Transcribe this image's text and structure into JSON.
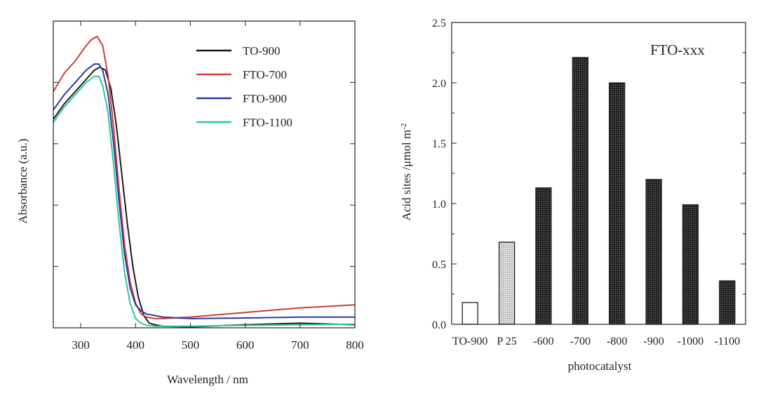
{
  "chart_data": [
    {
      "type": "line",
      "title": "",
      "xlabel": "Wavelength / nm",
      "ylabel": "Absorbance (a.u.)",
      "xlim": [
        250,
        800
      ],
      "ylim": [
        0,
        1.0
      ],
      "x_ticks": [
        300,
        400,
        500,
        600,
        700,
        800
      ],
      "y_ticks_labeled": false,
      "legend_position": "top-right",
      "series": [
        {
          "name": "TO-900",
          "color": "#1a1a1a",
          "x": [
            250,
            270,
            290,
            310,
            325,
            335,
            345,
            355,
            365,
            375,
            385,
            395,
            405,
            415,
            425,
            435,
            450,
            500,
            600,
            700,
            800
          ],
          "y": [
            0.68,
            0.73,
            0.77,
            0.81,
            0.84,
            0.85,
            0.84,
            0.78,
            0.66,
            0.5,
            0.34,
            0.2,
            0.1,
            0.04,
            0.015,
            0.01,
            0.005,
            0.003,
            0.01,
            0.015,
            0.01
          ]
        },
        {
          "name": "FTO-700",
          "color": "#d23a3a",
          "x": [
            250,
            270,
            290,
            310,
            320,
            330,
            340,
            350,
            360,
            370,
            380,
            390,
            400,
            410,
            420,
            435,
            450,
            500,
            600,
            700,
            800
          ],
          "y": [
            0.77,
            0.83,
            0.87,
            0.92,
            0.94,
            0.95,
            0.92,
            0.82,
            0.65,
            0.45,
            0.27,
            0.15,
            0.08,
            0.045,
            0.035,
            0.03,
            0.03,
            0.035,
            0.05,
            0.065,
            0.075
          ]
        },
        {
          "name": "FTO-900",
          "color": "#2b3aa8",
          "x": [
            250,
            270,
            290,
            310,
            325,
            333,
            340,
            350,
            360,
            370,
            380,
            390,
            400,
            410,
            420,
            435,
            450,
            500,
            600,
            700,
            800
          ],
          "y": [
            0.71,
            0.76,
            0.8,
            0.84,
            0.86,
            0.86,
            0.84,
            0.76,
            0.6,
            0.41,
            0.24,
            0.13,
            0.075,
            0.055,
            0.045,
            0.04,
            0.035,
            0.03,
            0.032,
            0.035,
            0.035
          ]
        },
        {
          "name": "FTO-1100",
          "color": "#2fc896",
          "x": [
            250,
            270,
            290,
            310,
            325,
            333,
            340,
            350,
            360,
            370,
            380,
            390,
            400,
            410,
            420,
            435,
            450,
            500,
            600,
            700,
            800
          ],
          "y": [
            0.67,
            0.72,
            0.76,
            0.8,
            0.82,
            0.82,
            0.79,
            0.7,
            0.53,
            0.34,
            0.18,
            0.08,
            0.03,
            0.015,
            0.008,
            0.005,
            0.005,
            0.005,
            0.008,
            0.01,
            0.012
          ]
        }
      ]
    },
    {
      "type": "bar",
      "title": "",
      "annotation": "FTO-xxx",
      "xlabel": "photocatalyst",
      "ylabel_main": "Acid sites /μmol m",
      "ylabel_sup": "-2",
      "ylim": [
        0,
        2.5
      ],
      "y_ticks": [
        "0.0",
        "0.5",
        "1.0",
        "1.5",
        "2.0",
        "2.5"
      ],
      "categories": [
        "TO-900",
        "P 25",
        "-600",
        "-700",
        "-800",
        "-900",
        "-1000",
        "-1100"
      ],
      "values": [
        0.18,
        0.68,
        1.13,
        2.21,
        2.0,
        1.2,
        0.99,
        0.36
      ],
      "fills": [
        "white",
        "dotted",
        "dark",
        "dark",
        "dark",
        "dark",
        "dark",
        "dark"
      ]
    }
  ]
}
